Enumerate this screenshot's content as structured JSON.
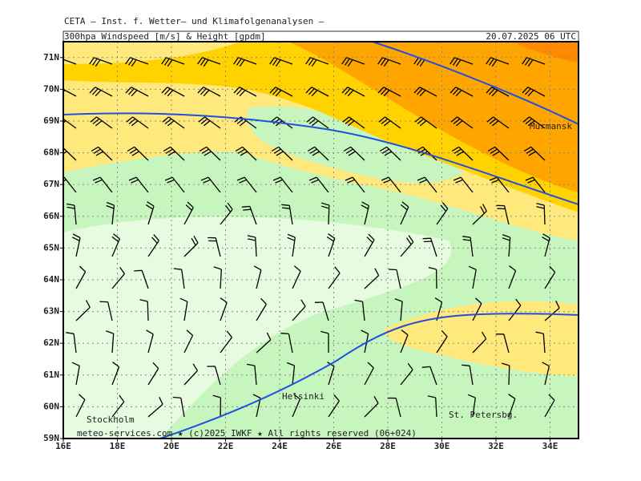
{
  "header": {
    "line1": "CETA – Inst. f. Wetter– und Klimafolgenanalysen –",
    "left": "300hpa_Windspeed_[m/s]_&_Height_[gpdm]",
    "right": "20.07.2025 06 UTC"
  },
  "map": {
    "x_axis": [
      "16E",
      "18E",
      "20E",
      "22E",
      "24E",
      "26E",
      "28E",
      "30E",
      "32E",
      "34E"
    ],
    "y_axis": [
      "59N",
      "60N",
      "61N",
      "62N",
      "63N",
      "64N",
      "65N",
      "66N",
      "67N",
      "68N",
      "69N",
      "70N",
      "71N"
    ],
    "cities": [
      "Murmansk",
      "Helsinki",
      "Stockholm",
      "St. Petersbg."
    ],
    "footer": "meteo-services.com ★ (c)2025 IWKF ★ All rights reserved (06+024)"
  }
}
